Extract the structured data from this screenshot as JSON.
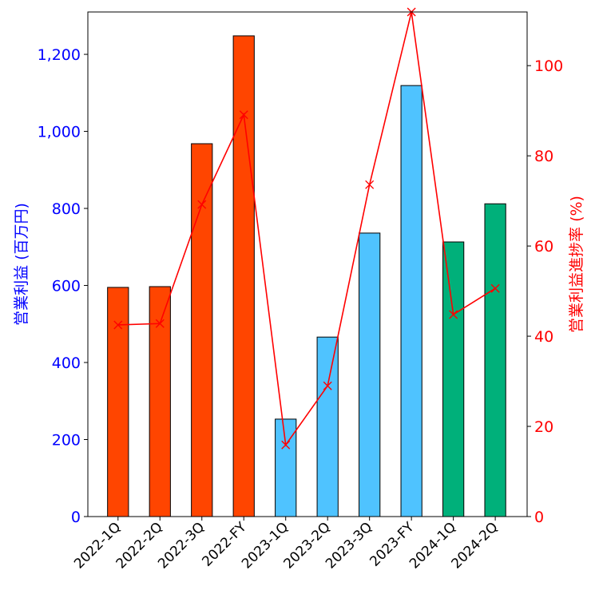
{
  "chart_data": {
    "type": "bar",
    "categories": [
      "2022-1Q",
      "2022-2Q",
      "2022-3Q",
      "2022-FY",
      "2023-1Q",
      "2023-2Q",
      "2023-3Q",
      "2023-FY",
      "2024-1Q",
      "2024-2Q"
    ],
    "series": [
      {
        "name": "営業利益",
        "type": "bar",
        "axis": "left",
        "values": [
          595,
          597,
          968,
          1248,
          253,
          466,
          736,
          1119,
          713,
          812
        ],
        "colors": [
          "#FF4500",
          "#FF4500",
          "#FF4500",
          "#FF4500",
          "#4FC3FF",
          "#4FC3FF",
          "#4FC3FF",
          "#4FC3FF",
          "#00B07A",
          "#00B07A"
        ]
      },
      {
        "name": "営業利益進捗率",
        "type": "line",
        "axis": "right",
        "marker": "x",
        "color": "#FF0000",
        "values": [
          42.5,
          42.8,
          69.2,
          89.1,
          15.9,
          29.0,
          73.6,
          111.9,
          44.8,
          50.6
        ]
      }
    ],
    "ylabel_left": "営業利益 (百万円)",
    "ylabel_right": "営業利益進捗率 (%)",
    "ylim_left": [
      0,
      1310
    ],
    "ylim_right": [
      0,
      111.9
    ],
    "yticks_left": [
      0,
      200,
      400,
      600,
      800,
      1000,
      1200
    ],
    "yticks_left_labels": [
      "0",
      "200",
      "400",
      "600",
      "800",
      "1,000",
      "1,200"
    ],
    "yticks_right": [
      0,
      20,
      40,
      60,
      80,
      100
    ],
    "yticks_right_labels": [
      "0",
      "20",
      "40",
      "60",
      "80",
      "100"
    ],
    "left_axis_color": "#0000FF",
    "right_axis_color": "#FF0000",
    "grid": false
  }
}
